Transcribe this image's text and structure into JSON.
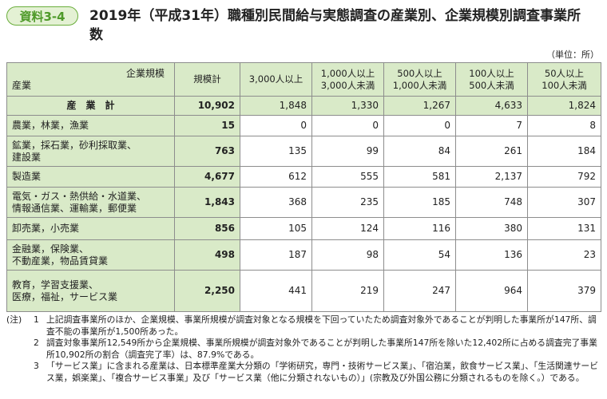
{
  "header": {
    "badge": "資料3-4",
    "title": "2019年（平成31年）職種別民間給与実態調査の産業別、企業規模別調査事業所数",
    "unit": "（単位：所）"
  },
  "table": {
    "corner_top": "企業規模",
    "corner_bottom": "産業",
    "columns": [
      [
        "規模計"
      ],
      [
        "3,000人以上"
      ],
      [
        "1,000人以上",
        "3,000人未満"
      ],
      [
        "500人以上",
        "1,000人未満"
      ],
      [
        "100人以上",
        "500人未満"
      ],
      [
        "50人以上",
        "100人未満"
      ]
    ],
    "rows": [
      {
        "label": [
          "産　業　計"
        ],
        "values": [
          "10,902",
          "1,848",
          "1,330",
          "1,267",
          "4,633",
          "1,824"
        ]
      },
      {
        "label": [
          "農業，林業，漁業"
        ],
        "values": [
          "15",
          "0",
          "0",
          "0",
          "7",
          "8"
        ]
      },
      {
        "label": [
          "鉱業，採石業，砂利採取業、",
          "建設業"
        ],
        "values": [
          "763",
          "135",
          "99",
          "84",
          "261",
          "184"
        ]
      },
      {
        "label": [
          "製造業"
        ],
        "values": [
          "4,677",
          "612",
          "555",
          "581",
          "2,137",
          "792"
        ]
      },
      {
        "label": [
          "電気・ガス・熱供給・水道業、",
          "情報通信業、運輸業，郵便業"
        ],
        "values": [
          "1,843",
          "368",
          "235",
          "185",
          "748",
          "307"
        ]
      },
      {
        "label": [
          "卸売業，小売業"
        ],
        "values": [
          "856",
          "105",
          "124",
          "116",
          "380",
          "131"
        ]
      },
      {
        "label": [
          "金融業，保険業、",
          "不動産業，物品賃貸業"
        ],
        "values": [
          "498",
          "187",
          "98",
          "54",
          "136",
          "23"
        ]
      },
      {
        "label": [
          "教育，学習支援業、",
          "医療，福祉，サービス業"
        ],
        "values": [
          "2,250",
          "441",
          "219",
          "247",
          "964",
          "379"
        ]
      }
    ]
  },
  "notes": {
    "label": "(注)",
    "items": [
      {
        "number": "1",
        "text": "上記調査事業所のほか、企業規模、事業所規模が調査対象となる規模を下回っていたため調査対象外であることが判明した事業所が147所、調査不能の事業所が1,500所あった。"
      },
      {
        "number": "2",
        "text": "調査対象事業所12,549所から企業規模、事業所規模が調査対象外であることが判明した事業所147所を除いた12,402所に占める調査完了事業所10,902所の割合（調査完了率）は、87.9%である。"
      },
      {
        "number": "3",
        "text": "「サービス業」に含まれる産業は、日本標準産業大分類の「学術研究，専門・技術サービス業」、「宿泊業，飲食サービス業」、「生活関連サービス業，娯楽業」、「複合サービス事業」及び「サービス業（他に分類されないもの）」(宗教及び外国公務に分類されるものを除く。）である。"
      }
    ]
  }
}
